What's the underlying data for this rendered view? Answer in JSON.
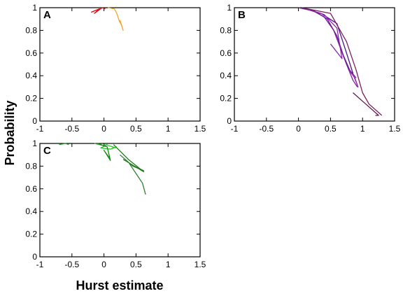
{
  "figure": {
    "ylabel": "Probability",
    "xlabel": "Hurst estimate"
  },
  "chart_data": [
    {
      "type": "line",
      "panel": "A",
      "xlim": [
        -1,
        1.5
      ],
      "ylim": [
        0,
        1
      ],
      "xticks": [
        -1,
        -0.5,
        0,
        0.5,
        1,
        1.5
      ],
      "yticks": [
        0,
        0.2,
        0.4,
        0.6,
        0.8,
        1
      ],
      "xtick_labels": [
        "-1",
        "-0.5",
        "0",
        "0.5",
        "1",
        "1.5"
      ],
      "ytick_labels": [
        "0",
        "0.2",
        "0.4",
        "0.6",
        "0.8",
        "1"
      ],
      "grid": false,
      "series": [
        {
          "color": "#e8000b",
          "x": [
            -0.2,
            -0.07,
            -0.15,
            -0.03,
            0.02
          ],
          "y": [
            0.96,
            0.99,
            0.95,
            1.0,
            0.99
          ]
        },
        {
          "color": "#f5a623",
          "x": [
            0.06,
            0.16,
            0.2,
            0.24,
            0.27,
            0.3,
            0.25
          ],
          "y": [
            1.0,
            0.99,
            0.95,
            0.88,
            0.85,
            0.8,
            0.89
          ]
        }
      ]
    },
    {
      "type": "line",
      "panel": "B",
      "xlim": [
        -1,
        1.5
      ],
      "ylim": [
        0,
        1
      ],
      "xticks": [
        -1,
        -0.5,
        0,
        0.5,
        1,
        1.5
      ],
      "yticks": [
        0,
        0.2,
        0.4,
        0.6,
        0.8,
        1
      ],
      "xtick_labels": [
        "-1",
        "-0.5",
        "0",
        "0.5",
        "1",
        "1.5"
      ],
      "ytick_labels": [
        "0",
        "0.2",
        "0.4",
        "0.6",
        "0.8",
        "1"
      ],
      "grid": false,
      "series": [
        {
          "color": "#7b1fa2",
          "x": [
            0.0,
            0.2,
            0.4,
            0.55,
            0.65,
            0.75,
            0.85,
            0.92
          ],
          "y": [
            1.0,
            0.98,
            0.92,
            0.8,
            0.65,
            0.5,
            0.36,
            0.3
          ]
        },
        {
          "color": "#6a1b9a",
          "x": [
            0.0,
            0.25,
            0.45,
            0.6,
            0.7,
            0.8,
            0.9
          ],
          "y": [
            1.0,
            0.97,
            0.9,
            0.75,
            0.58,
            0.45,
            0.38
          ]
        },
        {
          "color": "#4a148c",
          "x": [
            0.05,
            0.35,
            0.6,
            0.75,
            0.85
          ],
          "y": [
            1.0,
            0.95,
            0.86,
            0.6,
            0.42
          ]
        },
        {
          "color": "#8e24aa",
          "x": [
            0.1,
            0.4,
            0.6,
            0.68,
            0.5
          ],
          "y": [
            0.99,
            0.94,
            0.82,
            0.55,
            0.68
          ]
        },
        {
          "color": "#7a1f5c",
          "x": [
            0.05,
            0.5,
            0.75,
            0.9,
            1.0,
            1.1,
            1.3
          ],
          "y": [
            1.0,
            0.95,
            0.7,
            0.45,
            0.25,
            0.15,
            0.05
          ]
        },
        {
          "color": "#5d1a4a",
          "x": [
            0.85,
            1.05,
            1.25,
            1.2
          ],
          "y": [
            0.25,
            0.15,
            0.05,
            0.05
          ]
        },
        {
          "color": "#9c27b0",
          "x": [
            0.8,
            0.88,
            0.93,
            0.86
          ],
          "y": [
            0.44,
            0.38,
            0.3,
            0.4
          ]
        }
      ]
    },
    {
      "type": "line",
      "panel": "C",
      "xlim": [
        -1,
        1.5
      ],
      "ylim": [
        0,
        1
      ],
      "xticks": [
        -1,
        -0.5,
        0,
        0.5,
        1,
        1.5
      ],
      "yticks": [
        0,
        0.2,
        0.4,
        0.6,
        0.8,
        1
      ],
      "xtick_labels": [
        "-1",
        "-0.5",
        "0",
        "0.5",
        "1",
        "1.5"
      ],
      "ytick_labels": [
        "0",
        "0.2",
        "0.4",
        "0.6",
        "0.8",
        "1"
      ],
      "grid": false,
      "series": [
        {
          "color": "#1b9e1b",
          "x": [
            -0.7,
            -0.6,
            -0.55
          ],
          "y": [
            0.99,
            1.0,
            0.99
          ]
        },
        {
          "color": "#22c422",
          "x": [
            -0.15,
            0.0,
            0.05,
            -0.05,
            0.1,
            0.2
          ],
          "y": [
            1.0,
            0.98,
            0.99,
            0.96,
            0.95,
            0.97
          ]
        },
        {
          "color": "#0f8a0f",
          "x": [
            -0.1,
            0.05,
            0.1,
            0.0,
            0.1
          ],
          "y": [
            1.0,
            0.97,
            0.85,
            0.94,
            0.86
          ]
        },
        {
          "color": "#2e7d32",
          "x": [
            0.25,
            0.45,
            0.62,
            0.4,
            0.6,
            0.65
          ],
          "y": [
            0.9,
            0.8,
            0.76,
            0.82,
            0.65,
            0.55
          ]
        },
        {
          "color": "#1a7a1a",
          "x": [
            0.15,
            0.38,
            0.62,
            0.3
          ],
          "y": [
            0.99,
            0.86,
            0.75,
            0.86
          ]
        },
        {
          "color": "#33cc33",
          "x": [
            0.0,
            0.08,
            0.2,
            0.12
          ],
          "y": [
            0.99,
            0.98,
            0.96,
            0.97
          ]
        }
      ]
    }
  ]
}
